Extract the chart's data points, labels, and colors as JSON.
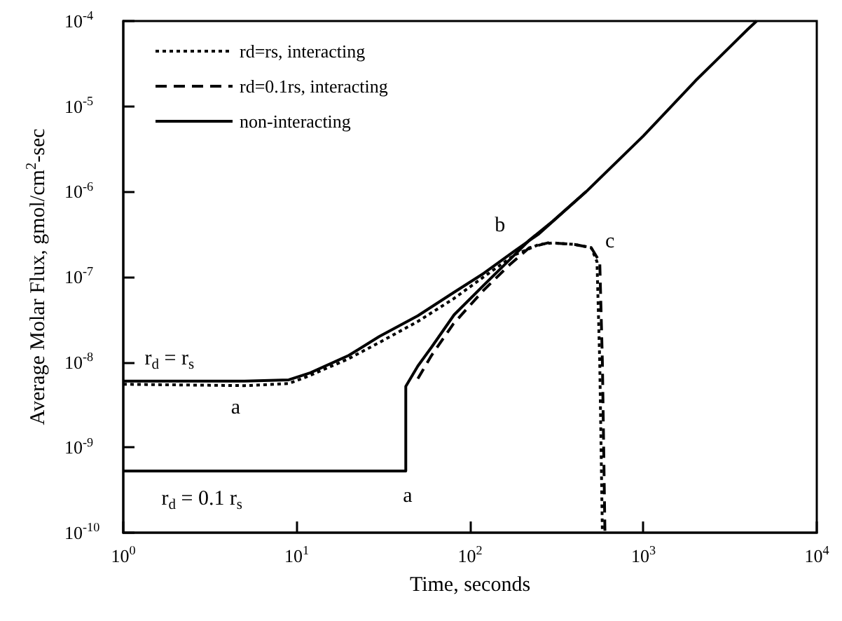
{
  "chart_data": {
    "type": "line",
    "xlabel": "Time, seconds",
    "ylabel": "Average Molar Flux, gmol/cm$^{2}$-sec",
    "log": "xy",
    "xlim": [
      1,
      10000
    ],
    "ylim": [
      1e-10,
      0.0001
    ],
    "xticks": [
      {
        "value": 1,
        "label": "10$^{0}$"
      },
      {
        "value": 10,
        "label": "10$^{1}$"
      },
      {
        "value": 100,
        "label": "10$^{2}$"
      },
      {
        "value": 1000,
        "label": "10$^{3}$"
      },
      {
        "value": 10000,
        "label": "10$^{4}$"
      }
    ],
    "yticks": [
      {
        "value": 1e-10,
        "label": "10$^{-10}$"
      },
      {
        "value": 1e-09,
        "label": "10$^{-9}$"
      },
      {
        "value": 1e-08,
        "label": "10$^{-8}$"
      },
      {
        "value": 1e-07,
        "label": "10$^{-7}$"
      },
      {
        "value": 1e-06,
        "label": "10$^{-6}$"
      },
      {
        "value": 1e-05,
        "label": "10$^{-5}$"
      },
      {
        "value": 0.0001,
        "label": "10$^{-4}$"
      }
    ],
    "grid": false,
    "legend": "top left",
    "marker": "none",
    "series": [
      {
        "name": "rd=rs, interacting",
        "color": "#000000",
        "line_style": "dotted",
        "x": [
          1,
          5,
          9,
          12,
          20,
          30,
          50,
          80,
          120,
          180,
          250,
          300,
          400,
          500,
          540,
          560,
          580
        ],
        "values": [
          5.5e-09,
          5.3e-09,
          5.6e-09,
          7e-09,
          1.1e-08,
          1.7e-08,
          3e-08,
          5.5e-08,
          1e-07,
          1.8e-07,
          2.4e-07,
          2.5e-07,
          2.4e-07,
          2.2e-07,
          1.5e-07,
          1e-08,
          1e-10
        ]
      },
      {
        "name": "rd=0.1rs, interacting",
        "color": "#000000",
        "line_style": "dashed",
        "x": [
          50,
          60,
          80,
          120,
          170,
          220,
          280,
          300,
          400,
          500,
          560,
          580,
          600
        ],
        "values": [
          6.4e-09,
          1.2e-08,
          2.8e-08,
          7e-08,
          1.4e-07,
          2.2e-07,
          2.5e-07,
          2.5e-07,
          2.4e-07,
          2.2e-07,
          1.5e-07,
          1e-08,
          1e-10
        ]
      },
      {
        "name": "non-interacting",
        "color": "#000000",
        "line_style": "solid",
        "x": [
          1,
          5,
          9,
          12,
          20,
          30,
          50,
          80,
          120,
          180,
          250,
          468,
          1000,
          2000,
          4000,
          4500
        ],
        "values": [
          6e-09,
          6e-09,
          6.2e-09,
          7.5e-09,
          1.2e-08,
          2e-08,
          3.5e-08,
          6.5e-08,
          1.1e-07,
          2e-07,
          3.2e-07,
          1e-06,
          4.5e-06,
          2e-05,
          8e-05,
          0.0001
        ]
      },
      {
        "color": "#000000",
        "line_style": "solid",
        "x": [
          1,
          42.6,
          42.6,
          50,
          60,
          81,
          120,
          170,
          220,
          300,
          468
        ],
        "values": [
          5.3e-10,
          5.3e-10,
          5.2e-09,
          9e-09,
          1.5e-08,
          3.6e-08,
          8e-08,
          1.6e-07,
          2.7e-07,
          4.5e-07,
          1e-06
        ]
      }
    ],
    "annotations": [
      {
        "text": "r$_{d}$ = r$_{s}$",
        "x": 2,
        "y": 6e-09
      },
      {
        "text": "a",
        "x": 4.5,
        "y": 5.3e-09
      },
      {
        "text": "r$_{d}$ = 0.1 r$_{s}$",
        "x": 2.5,
        "y": 5.3e-10
      },
      {
        "text": "a",
        "x": 42.6,
        "y": 5.3e-10
      },
      {
        "text": "b",
        "x": 180,
        "y": 2e-07
      },
      {
        "text": "c",
        "x": 500,
        "y": 2.2e-07
      }
    ]
  }
}
